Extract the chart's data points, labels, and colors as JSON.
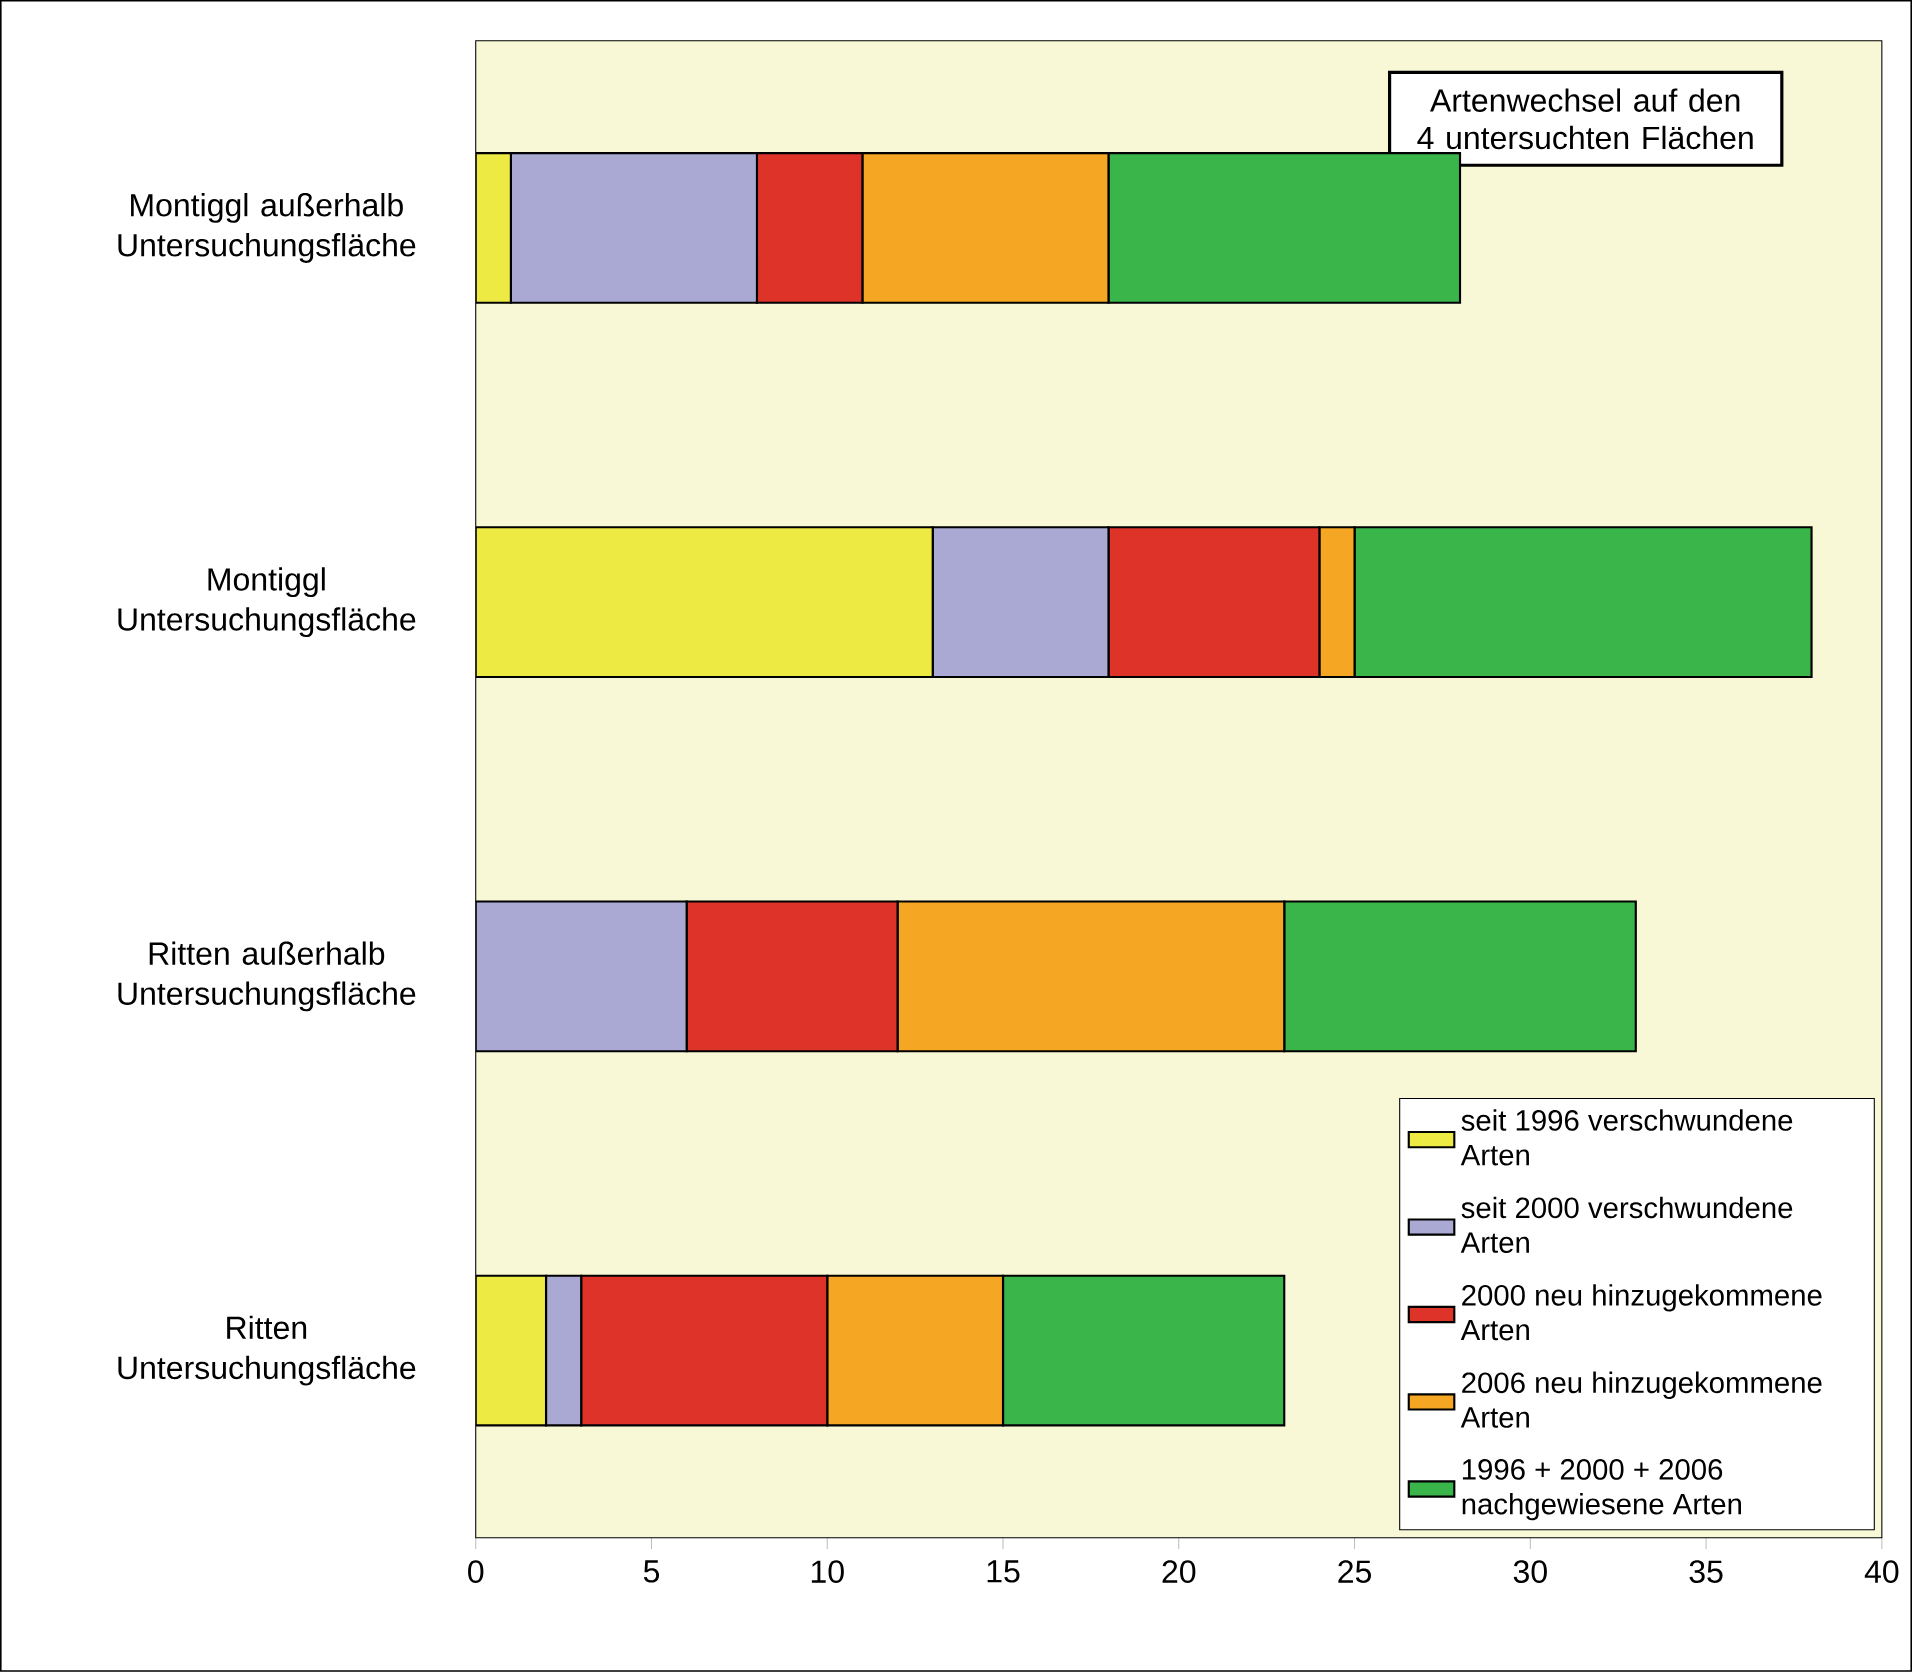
{
  "chart_data": {
    "type": "bar",
    "orientation": "horizontal",
    "stacked": true,
    "categories": [
      "Montiggl außerhalb Untersuchungsfläche",
      "Montiggl Untersuchungsfläche",
      "Ritten außerhalb Untersuchungsfläche",
      "Ritten Untersuchungsfläche"
    ],
    "series": [
      {
        "name": "seit 1996 verschwundene Arten",
        "color": "#eeea44",
        "values": [
          1,
          13,
          0,
          2
        ]
      },
      {
        "name": "seit 2000 verschwundene Arten",
        "color": "#a9a9d4",
        "values": [
          7,
          5,
          6,
          1
        ]
      },
      {
        "name": "2000 neu hinzugekommene Arten",
        "color": "#dd3329",
        "values": [
          3,
          6,
          6,
          7
        ]
      },
      {
        "name": "2006 neu hinzugekommene Arten",
        "color": "#f5a623",
        "values": [
          7,
          1,
          11,
          5
        ]
      },
      {
        "name": "1996 + 2000 + 2006 nachgewiesene Arten",
        "color": "#39b54a",
        "values": [
          10,
          13,
          10,
          8
        ]
      }
    ],
    "xlim": [
      0,
      40
    ],
    "xticks": [
      0,
      5,
      10,
      15,
      20,
      25,
      30,
      35,
      40
    ],
    "legend": "bottom right",
    "annotations": [
      "Artenwechsel auf den 4 untersuchten Flächen"
    ]
  }
}
